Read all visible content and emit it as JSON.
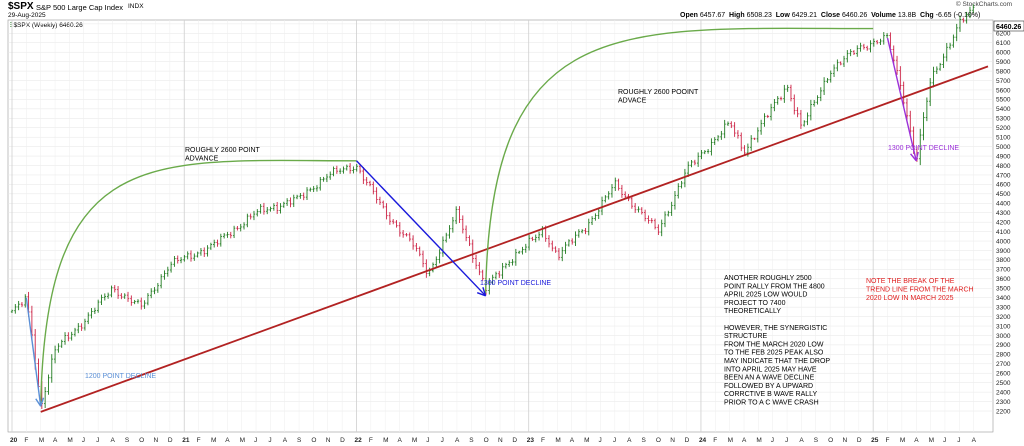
{
  "header": {
    "symbol": "$SPX",
    "name": "S&P 500 Large Cap Index",
    "exchange": "INDX",
    "date": "29-Aug-2025",
    "source": "© StockCharts.com",
    "legend_label": "$SPX (Weekly) 6460.26",
    "open_label": "Open",
    "open": "6457.67",
    "high_label": "High",
    "high": "6508.23",
    "low_label": "Low",
    "low": "6429.21",
    "close_label": "Close",
    "close": "6460.26",
    "volume_label": "Volume",
    "volume": "13.8B",
    "chg_label": "Chg",
    "chg": "-6.65 (-0.10%)",
    "last_price_tag": "6460.26"
  },
  "colors": {
    "up_bar": "#1f7a1f",
    "down_bar": "#cc2244",
    "trendline": "#b22222",
    "arc": "#6aaa4a",
    "decline_blue": "#1a1adb",
    "decline_lightblue": "#5a8fd6",
    "decline_purple": "#9b30d9",
    "note_red": "#e02020"
  },
  "chart_data": {
    "type": "bar",
    "title": "$SPX (Weekly)",
    "xlabel": "",
    "ylabel": "",
    "ylim": [
      2150,
      6520
    ],
    "y_ticks": [
      2200,
      2300,
      2400,
      2500,
      2600,
      2700,
      2800,
      2900,
      3000,
      3100,
      3200,
      3300,
      3400,
      3500,
      3600,
      3700,
      3800,
      3900,
      4000,
      4100,
      4200,
      4300,
      4400,
      4500,
      4600,
      4700,
      4800,
      4900,
      5000,
      5100,
      5200,
      5300,
      5400,
      5500,
      5600,
      5700,
      5800,
      5900,
      6000,
      6100,
      6200,
      6300
    ],
    "x_labels": [
      "20",
      "F",
      "M",
      "A",
      "M",
      "J",
      "J",
      "A",
      "S",
      "O",
      "N",
      "D",
      "21",
      "F",
      "M",
      "A",
      "M",
      "J",
      "J",
      "A",
      "S",
      "O",
      "N",
      "D",
      "22",
      "F",
      "M",
      "A",
      "M",
      "J",
      "J",
      "A",
      "S",
      "O",
      "N",
      "D",
      "23",
      "F",
      "M",
      "A",
      "M",
      "J",
      "J",
      "A",
      "S",
      "O",
      "N",
      "D",
      "24",
      "F",
      "M",
      "A",
      "M",
      "J",
      "J",
      "A",
      "S",
      "O",
      "N",
      "D",
      "25",
      "F",
      "M",
      "A",
      "M",
      "J",
      "J",
      "A"
    ],
    "x_range": [
      "2020-01",
      "2025-09"
    ],
    "grid": true,
    "axis_position": "right",
    "price_path": [
      [
        "2020-01",
        3250
      ],
      [
        "2020-02",
        3380
      ],
      [
        "2020-02",
        2950
      ],
      [
        "2020-03",
        2250
      ],
      [
        "2020-04",
        2850
      ],
      [
        "2020-06",
        3150
      ],
      [
        "2020-08",
        3500
      ],
      [
        "2020-10",
        3300
      ],
      [
        "2020-12",
        3750
      ],
      [
        "2021-03",
        3950
      ],
      [
        "2021-06",
        4300
      ],
      [
        "2021-09",
        4450
      ],
      [
        "2021-11",
        4700
      ],
      [
        "2022-01",
        4800
      ],
      [
        "2022-03",
        4300
      ],
      [
        "2022-05",
        3950
      ],
      [
        "2022-06",
        3650
      ],
      [
        "2022-08",
        4300
      ],
      [
        "2022-10",
        3500
      ],
      [
        "2022-12",
        3850
      ],
      [
        "2023-02",
        4100
      ],
      [
        "2023-03",
        3850
      ],
      [
        "2023-05",
        4150
      ],
      [
        "2023-07",
        4600
      ],
      [
        "2023-10",
        4100
      ],
      [
        "2023-12",
        4750
      ],
      [
        "2024-03",
        5250
      ],
      [
        "2024-04",
        4950
      ],
      [
        "2024-07",
        5650
      ],
      [
        "2024-08",
        5200
      ],
      [
        "2024-10",
        5800
      ],
      [
        "2024-12",
        6050
      ],
      [
        "2025-02",
        6150
      ],
      [
        "2025-03",
        5600
      ],
      [
        "2025-04",
        4850
      ],
      [
        "2025-05",
        5700
      ],
      [
        "2025-07",
        6300
      ],
      [
        "2025-08",
        6460
      ]
    ],
    "trendline": [
      [
        "2020-03",
        2191
      ],
      [
        "2025-09",
        5850
      ]
    ],
    "arcs": [
      [
        [
          "2020-03",
          2250
        ],
        [
          "2022-01",
          4850
        ]
      ],
      [
        [
          "2022-10",
          3450
        ],
        [
          "2025-01",
          6250
        ]
      ]
    ],
    "decline_arrows": [
      {
        "from": [
          "2020-02",
          3400
        ],
        "to": [
          "2020-03",
          2250
        ],
        "color": "lightblue"
      },
      {
        "from": [
          "2022-01",
          4850
        ],
        "to": [
          "2022-10",
          3420
        ],
        "color": "blue"
      },
      {
        "from": [
          "2025-02",
          6150
        ],
        "to": [
          "2025-04",
          4850
        ],
        "color": "purple"
      }
    ],
    "annotations": {
      "advance_1": "ROUGHLY 2600 POINT\nADVANCE",
      "advance_2": "ROUGHLY 2600 POOINT\nADVACE",
      "decline_1200": "1200 POINT DECLINE",
      "decline_1300": "1300 POINT DECLINE",
      "decline_1300_2025": "1300 POINT DECLINE",
      "rally_note": "ANOTHER ROUGHLY 2500\nPOINT RALLY FROM THE 4800\nAPRIL 2025 LOW WOULD\nPROJECT TO 7400\nTHEORETICALLY\n\nHOWEVER, THE SYNERGISTIC\nSTRUCTURE\nFROM THE MARCH 2020 LOW\nTO THE FEB 2025 PEAK ALSO\nMAY INDICATE THAT THE DROP\nINTO APRIL 2025 MAY HAVE\nBEEN AN A WAVE DECLINE\nFOLLOWED BY A UPWARD\nCORRCTIVE B WAVE RALLY\nPRIOR TO A C WAVE CRASH",
      "break_note": "NOTE THE BREAK OF THE\nTREND LINE FROM THE MARCH\n2020 LOW IN MARCH 2025"
    }
  }
}
